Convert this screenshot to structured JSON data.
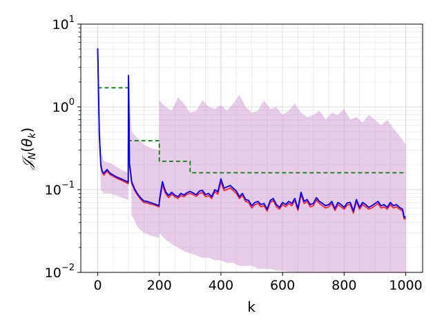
{
  "chart_data": {
    "type": "line",
    "xlabel": "k",
    "ylabel": "𝒥N(θk)",
    "ylabel_parts": {
      "J": "𝒥",
      "N": "N",
      "theta": "θ",
      "k": "k"
    },
    "xlim": [
      -55,
      1055
    ],
    "ylim": [
      0.01,
      10
    ],
    "yscale": "log",
    "grid": true,
    "x_ticks": [
      0,
      200,
      400,
      600,
      800,
      1000
    ],
    "x_tick_labels": [
      "0",
      "200",
      "400",
      "600",
      "800",
      "1000"
    ],
    "y_ticks": [
      0.01,
      0.1,
      1,
      10
    ],
    "y_tick_labels": [
      {
        "base": "10",
        "exp": "−2"
      },
      {
        "base": "10",
        "exp": "−1"
      },
      {
        "base": "10",
        "exp": "0"
      },
      {
        "base": "10",
        "exp": "1"
      }
    ],
    "colors": {
      "band": "#c98fcf",
      "lower": "#ff2020",
      "mean": "#0000ff",
      "threshold": "#008000"
    },
    "series": [
      {
        "style": "band",
        "x": [
          0,
          10,
          20,
          40,
          60,
          80,
          99,
          100,
          110,
          130,
          150,
          170,
          199,
          200,
          220,
          240,
          260,
          280,
          300,
          320,
          340,
          360,
          380,
          400,
          420,
          440,
          460,
          480,
          500,
          520,
          540,
          560,
          580,
          600,
          620,
          640,
          660,
          680,
          700,
          720,
          740,
          760,
          780,
          800,
          820,
          840,
          860,
          880,
          900,
          920,
          940,
          960,
          980,
          1000
        ],
        "upper": [
          5.0,
          0.3,
          0.22,
          0.21,
          0.19,
          0.17,
          0.16,
          2.3,
          0.5,
          0.42,
          0.35,
          0.32,
          0.3,
          1.2,
          1.0,
          0.9,
          1.3,
          1.1,
          0.85,
          0.9,
          1.2,
          1.0,
          0.95,
          1.05,
          0.9,
          1.1,
          1.4,
          1.0,
          0.85,
          0.9,
          1.2,
          0.95,
          1.0,
          0.8,
          0.9,
          1.1,
          0.85,
          0.75,
          0.8,
          0.9,
          0.7,
          0.85,
          0.8,
          0.95,
          0.7,
          0.75,
          0.65,
          0.8,
          0.7,
          0.6,
          0.7,
          0.55,
          0.45,
          0.35
        ],
        "lower": [
          5.0,
          0.1,
          0.09,
          0.09,
          0.085,
          0.08,
          0.075,
          2.0,
          0.05,
          0.035,
          0.03,
          0.028,
          0.026,
          0.03,
          0.025,
          0.022,
          0.02,
          0.018,
          0.017,
          0.016,
          0.015,
          0.015,
          0.014,
          0.014,
          0.013,
          0.013,
          0.012,
          0.012,
          0.012,
          0.011,
          0.011,
          0.011,
          0.0105,
          0.0105,
          0.0102,
          0.0102,
          0.01,
          0.01,
          0.01,
          0.01,
          0.01,
          0.01,
          0.01,
          0.01,
          0.01,
          0.01,
          0.01,
          0.01,
          0.01,
          0.01,
          0.01,
          0.01,
          0.01,
          0.01
        ]
      },
      {
        "style": "step-dashed",
        "x": [
          0,
          100,
          100,
          200,
          200,
          300,
          300,
          1000
        ],
        "y": [
          1.7,
          1.7,
          0.39,
          0.39,
          0.22,
          0.22,
          0.16,
          0.16
        ]
      },
      {
        "style": "line-lower",
        "x": [
          0,
          5,
          10,
          15,
          20,
          30,
          40,
          60,
          80,
          99,
          100,
          103,
          110,
          120,
          130,
          140,
          150,
          160,
          170,
          180,
          190,
          199,
          200,
          210,
          220,
          230,
          240,
          250,
          260,
          270,
          280,
          290,
          300,
          310,
          320,
          330,
          340,
          350,
          360,
          370,
          380,
          390,
          400,
          410,
          420,
          430,
          440,
          450,
          460,
          470,
          480,
          490,
          500,
          510,
          520,
          530,
          540,
          550,
          560,
          570,
          580,
          590,
          600,
          610,
          620,
          630,
          640,
          650,
          660,
          670,
          680,
          690,
          700,
          710,
          720,
          730,
          740,
          750,
          760,
          770,
          780,
          790,
          800,
          810,
          820,
          830,
          840,
          850,
          860,
          870,
          880,
          890,
          900,
          910,
          920,
          930,
          940,
          950,
          960,
          970,
          980,
          990,
          995,
          1000
        ],
        "y": [
          5.0,
          0.45,
          0.19,
          0.16,
          0.15,
          0.168,
          0.152,
          0.138,
          0.128,
          0.118,
          2.3,
          0.2,
          0.12,
          0.098,
          0.085,
          0.076,
          0.07,
          0.069,
          0.067,
          0.066,
          0.064,
          0.062,
          0.07,
          0.115,
          0.09,
          0.08,
          0.088,
          0.082,
          0.078,
          0.085,
          0.082,
          0.088,
          0.09,
          0.087,
          0.083,
          0.09,
          0.092,
          0.082,
          0.085,
          0.078,
          0.095,
          0.088,
          0.125,
          0.098,
          0.1,
          0.105,
          0.098,
          0.09,
          0.078,
          0.085,
          0.072,
          0.07,
          0.06,
          0.066,
          0.068,
          0.062,
          0.064,
          0.055,
          0.07,
          0.074,
          0.062,
          0.058,
          0.066,
          0.062,
          0.068,
          0.064,
          0.074,
          0.056,
          0.088,
          0.068,
          0.072,
          0.062,
          0.064,
          0.075,
          0.068,
          0.064,
          0.06,
          0.062,
          0.068,
          0.056,
          0.066,
          0.062,
          0.058,
          0.065,
          0.066,
          0.052,
          0.072,
          0.058,
          0.066,
          0.062,
          0.058,
          0.06,
          0.064,
          0.068,
          0.06,
          0.062,
          0.058,
          0.066,
          0.06,
          0.062,
          0.058,
          0.055,
          0.044,
          0.045
        ]
      },
      {
        "style": "line-mean",
        "x": [
          0,
          5,
          10,
          15,
          20,
          30,
          40,
          60,
          80,
          99,
          100,
          103,
          110,
          120,
          130,
          140,
          150,
          160,
          170,
          180,
          190,
          199,
          200,
          210,
          220,
          230,
          240,
          250,
          260,
          270,
          280,
          290,
          300,
          310,
          320,
          330,
          340,
          350,
          360,
          370,
          380,
          390,
          400,
          410,
          420,
          430,
          440,
          450,
          460,
          470,
          480,
          490,
          500,
          510,
          520,
          530,
          540,
          550,
          560,
          570,
          580,
          590,
          600,
          610,
          620,
          630,
          640,
          650,
          660,
          670,
          680,
          690,
          700,
          710,
          720,
          730,
          740,
          750,
          760,
          770,
          780,
          790,
          800,
          810,
          820,
          830,
          840,
          850,
          860,
          870,
          880,
          890,
          900,
          910,
          920,
          930,
          940,
          950,
          960,
          970,
          980,
          990,
          995,
          1000
        ],
        "y": [
          5.1,
          0.48,
          0.2,
          0.165,
          0.158,
          0.175,
          0.158,
          0.143,
          0.133,
          0.123,
          2.4,
          0.21,
          0.125,
          0.102,
          0.088,
          0.079,
          0.073,
          0.072,
          0.07,
          0.068,
          0.066,
          0.064,
          0.073,
          0.125,
          0.095,
          0.085,
          0.093,
          0.086,
          0.082,
          0.09,
          0.086,
          0.092,
          0.095,
          0.091,
          0.087,
          0.096,
          0.098,
          0.087,
          0.09,
          0.082,
          0.1,
          0.094,
          0.135,
          0.104,
          0.108,
          0.112,
          0.104,
          0.096,
          0.082,
          0.09,
          0.076,
          0.074,
          0.064,
          0.07,
          0.072,
          0.066,
          0.068,
          0.058,
          0.074,
          0.078,
          0.066,
          0.061,
          0.07,
          0.066,
          0.072,
          0.068,
          0.078,
          0.059,
          0.093,
          0.072,
          0.076,
          0.066,
          0.068,
          0.08,
          0.072,
          0.068,
          0.064,
          0.066,
          0.072,
          0.059,
          0.07,
          0.066,
          0.061,
          0.069,
          0.07,
          0.055,
          0.076,
          0.061,
          0.07,
          0.066,
          0.061,
          0.064,
          0.068,
          0.072,
          0.064,
          0.066,
          0.061,
          0.07,
          0.064,
          0.066,
          0.061,
          0.058,
          0.046,
          0.047
        ]
      }
    ]
  }
}
